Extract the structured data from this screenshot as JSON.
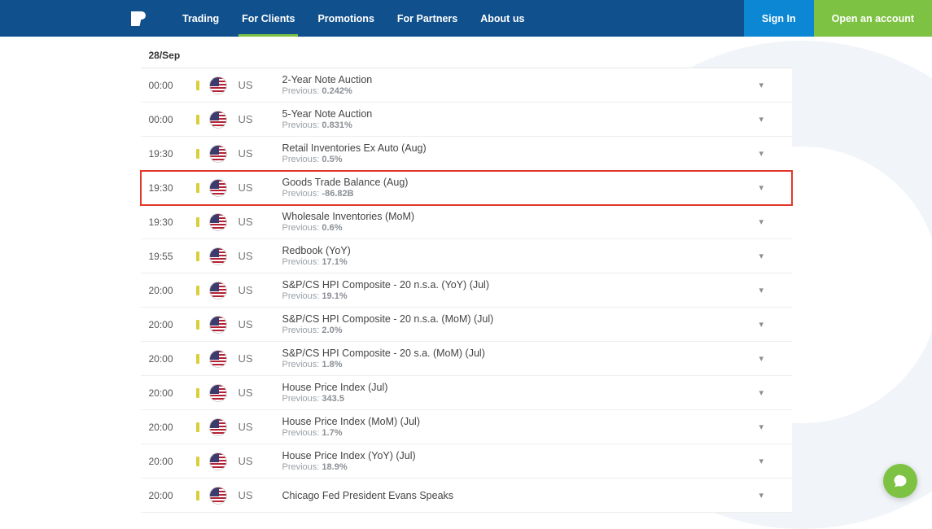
{
  "header": {
    "nav": [
      {
        "label": "Trading",
        "active": false
      },
      {
        "label": "For Clients",
        "active": true
      },
      {
        "label": "Promotions",
        "active": false
      },
      {
        "label": "For Partners",
        "active": false
      },
      {
        "label": "About us",
        "active": false
      }
    ],
    "signin": "Sign In",
    "open_account": "Open an account"
  },
  "calendar": {
    "date_label": "28/Sep",
    "previous_label": "Previous:",
    "rows": [
      {
        "time": "00:00",
        "country": "US",
        "title": "2-Year Note Auction",
        "previous": "0.242%",
        "highlight": false
      },
      {
        "time": "00:00",
        "country": "US",
        "title": "5-Year Note Auction",
        "previous": "0.831%",
        "highlight": false
      },
      {
        "time": "19:30",
        "country": "US",
        "title": "Retail Inventories Ex Auto (Aug)",
        "previous": "0.5%",
        "highlight": false
      },
      {
        "time": "19:30",
        "country": "US",
        "title": "Goods Trade Balance (Aug)",
        "previous": "-86.82B",
        "highlight": true
      },
      {
        "time": "19:30",
        "country": "US",
        "title": "Wholesale Inventories (MoM)",
        "previous": "0.6%",
        "highlight": false
      },
      {
        "time": "19:55",
        "country": "US",
        "title": "Redbook (YoY)",
        "previous": "17.1%",
        "highlight": false
      },
      {
        "time": "20:00",
        "country": "US",
        "title": "S&P/CS HPI Composite - 20 n.s.a. (YoY) (Jul)",
        "previous": "19.1%",
        "highlight": false
      },
      {
        "time": "20:00",
        "country": "US",
        "title": "S&P/CS HPI Composite - 20 n.s.a. (MoM) (Jul)",
        "previous": "2.0%",
        "highlight": false
      },
      {
        "time": "20:00",
        "country": "US",
        "title": "S&P/CS HPI Composite - 20 s.a. (MoM) (Jul)",
        "previous": "1.8%",
        "highlight": false
      },
      {
        "time": "20:00",
        "country": "US",
        "title": "House Price Index (Jul)",
        "previous": "343.5",
        "highlight": false
      },
      {
        "time": "20:00",
        "country": "US",
        "title": "House Price Index (MoM) (Jul)",
        "previous": "1.7%",
        "highlight": false
      },
      {
        "time": "20:00",
        "country": "US",
        "title": "House Price Index (YoY) (Jul)",
        "previous": "18.9%",
        "highlight": false
      },
      {
        "time": "20:00",
        "country": "US",
        "title": "Chicago Fed President Evans Speaks",
        "previous": "",
        "highlight": false
      }
    ]
  },
  "colors": {
    "header_bg": "#10508d",
    "signin_bg": "#0b87d4",
    "open_bg": "#7dc242",
    "nav_active_underline": "#7dc242",
    "highlight_border": "#e2382a",
    "impact_bar": "#d9cf3a",
    "watermark_bg": "#f1f4f8"
  }
}
